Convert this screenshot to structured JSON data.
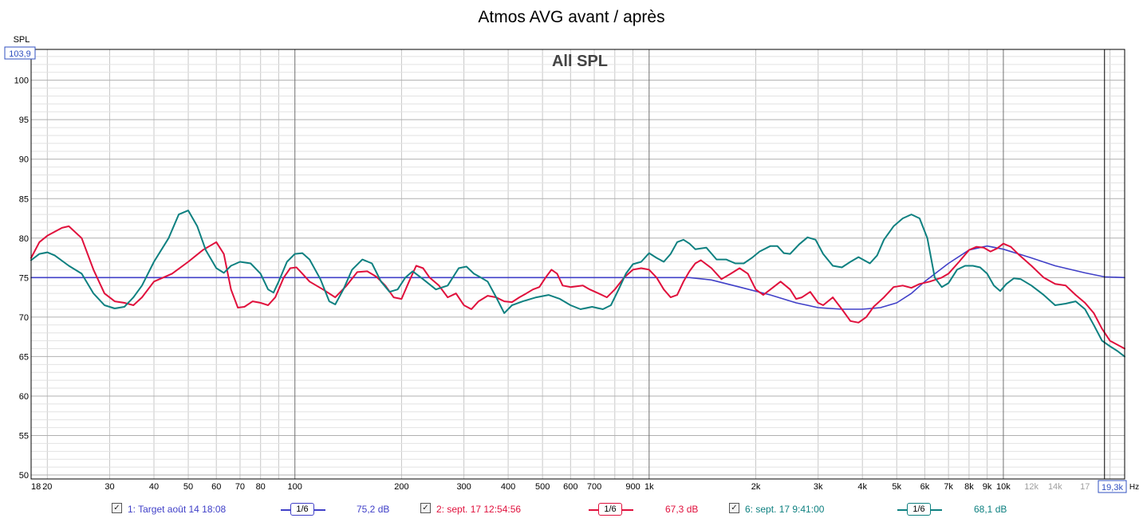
{
  "chart_data": {
    "type": "line",
    "title": "Atmos AVG avant / après",
    "plot_label": "All SPL",
    "ylabel": "SPL",
    "xlabel": "Hz",
    "x_scale": "log",
    "xlim": [
      18,
      22000
    ],
    "ylim": [
      49.5,
      103.9
    ],
    "y_top_readout": "103,9",
    "x_right_readout": "19,3k",
    "y_ticks": [
      50,
      55,
      60,
      65,
      70,
      75,
      80,
      85,
      90,
      95,
      100
    ],
    "x_tick_labels": [
      {
        "v": 18,
        "t": "18"
      },
      {
        "v": 20,
        "t": "20"
      },
      {
        "v": 30,
        "t": "30"
      },
      {
        "v": 40,
        "t": "40"
      },
      {
        "v": 50,
        "t": "50"
      },
      {
        "v": 60,
        "t": "60"
      },
      {
        "v": 70,
        "t": "70"
      },
      {
        "v": 80,
        "t": "80"
      },
      {
        "v": 100,
        "t": "100"
      },
      {
        "v": 200,
        "t": "200"
      },
      {
        "v": 300,
        "t": "300"
      },
      {
        "v": 400,
        "t": "400"
      },
      {
        "v": 500,
        "t": "500"
      },
      {
        "v": 600,
        "t": "600"
      },
      {
        "v": 700,
        "t": "700"
      },
      {
        "v": 900,
        "t": "900"
      },
      {
        "v": 1000,
        "t": "1k"
      },
      {
        "v": 2000,
        "t": "2k"
      },
      {
        "v": 3000,
        "t": "3k"
      },
      {
        "v": 4000,
        "t": "4k"
      },
      {
        "v": 5000,
        "t": "5k"
      },
      {
        "v": 6000,
        "t": "6k"
      },
      {
        "v": 7000,
        "t": "7k"
      },
      {
        "v": 8000,
        "t": "8k"
      },
      {
        "v": 9000,
        "t": "9k"
      },
      {
        "v": 10000,
        "t": "10k"
      }
    ],
    "x_tick_labels_faded": [
      {
        "v": 12000,
        "t": "12k"
      },
      {
        "v": 14000,
        "t": "14k"
      },
      {
        "v": 17000,
        "t": "17"
      }
    ],
    "cursor_x": 19300,
    "series": [
      {
        "name": "1: Target août 14 18:08",
        "color": "#4040c8",
        "smoothing": "1/6",
        "value": "75,2 dB",
        "points": [
          [
            18,
            75
          ],
          [
            500,
            75
          ],
          [
            1300,
            75
          ],
          [
            1500,
            74.7
          ],
          [
            1800,
            73.8
          ],
          [
            2200,
            72.8
          ],
          [
            2600,
            71.8
          ],
          [
            3000,
            71.2
          ],
          [
            3500,
            71
          ],
          [
            4000,
            71
          ],
          [
            4500,
            71.2
          ],
          [
            5000,
            71.8
          ],
          [
            5500,
            73
          ],
          [
            6000,
            74.5
          ],
          [
            7000,
            76.8
          ],
          [
            8000,
            78.5
          ],
          [
            9000,
            79
          ],
          [
            10000,
            78.6
          ],
          [
            12000,
            77.5
          ],
          [
            14000,
            76.5
          ],
          [
            17000,
            75.6
          ],
          [
            19300,
            75.1
          ],
          [
            22000,
            75
          ]
        ]
      },
      {
        "name": "2: sept. 17 12:54:56",
        "color": "#e0103c",
        "smoothing": "1/6",
        "value": "67,3 dB",
        "points": [
          [
            18,
            77.5
          ],
          [
            19,
            79.5
          ],
          [
            20,
            80.3
          ],
          [
            22,
            81.3
          ],
          [
            23,
            81.5
          ],
          [
            25,
            80
          ],
          [
            27,
            76
          ],
          [
            29,
            73
          ],
          [
            31,
            72
          ],
          [
            33,
            71.8
          ],
          [
            35,
            71.5
          ],
          [
            37,
            72.5
          ],
          [
            40,
            74.5
          ],
          [
            45,
            75.5
          ],
          [
            50,
            77
          ],
          [
            55,
            78.5
          ],
          [
            60,
            79.5
          ],
          [
            63,
            78
          ],
          [
            66,
            73.5
          ],
          [
            69,
            71.2
          ],
          [
            72,
            71.3
          ],
          [
            76,
            72
          ],
          [
            80,
            71.8
          ],
          [
            84,
            71.5
          ],
          [
            88,
            72.5
          ],
          [
            93,
            75
          ],
          [
            97,
            76.2
          ],
          [
            101,
            76.3
          ],
          [
            105,
            75.5
          ],
          [
            110,
            74.5
          ],
          [
            120,
            73.5
          ],
          [
            130,
            72.5
          ],
          [
            140,
            74
          ],
          [
            150,
            75.7
          ],
          [
            160,
            75.8
          ],
          [
            170,
            75.1
          ],
          [
            180,
            74
          ],
          [
            190,
            72.5
          ],
          [
            200,
            72.3
          ],
          [
            210,
            74.5
          ],
          [
            220,
            76.5
          ],
          [
            230,
            76.2
          ],
          [
            240,
            75
          ],
          [
            255,
            74
          ],
          [
            270,
            72.5
          ],
          [
            285,
            73
          ],
          [
            300,
            71.5
          ],
          [
            315,
            71
          ],
          [
            330,
            72
          ],
          [
            350,
            72.7
          ],
          [
            370,
            72.5
          ],
          [
            390,
            72
          ],
          [
            410,
            71.9
          ],
          [
            430,
            72.5
          ],
          [
            450,
            73
          ],
          [
            470,
            73.5
          ],
          [
            490,
            73.8
          ],
          [
            510,
            75
          ],
          [
            530,
            76
          ],
          [
            550,
            75.5
          ],
          [
            570,
            74
          ],
          [
            600,
            73.8
          ],
          [
            650,
            74
          ],
          [
            680,
            73.5
          ],
          [
            720,
            73
          ],
          [
            760,
            72.5
          ],
          [
            800,
            73.5
          ],
          [
            850,
            75
          ],
          [
            900,
            76
          ],
          [
            950,
            76.2
          ],
          [
            1000,
            76
          ],
          [
            1050,
            75
          ],
          [
            1100,
            73.5
          ],
          [
            1150,
            72.5
          ],
          [
            1200,
            72.8
          ],
          [
            1250,
            74.5
          ],
          [
            1300,
            75.8
          ],
          [
            1350,
            76.8
          ],
          [
            1400,
            77.2
          ],
          [
            1500,
            76.2
          ],
          [
            1600,
            74.8
          ],
          [
            1700,
            75.5
          ],
          [
            1800,
            76.2
          ],
          [
            1900,
            75.5
          ],
          [
            2000,
            73.5
          ],
          [
            2100,
            72.8
          ],
          [
            2200,
            73.5
          ],
          [
            2350,
            74.5
          ],
          [
            2500,
            73.5
          ],
          [
            2600,
            72.3
          ],
          [
            2700,
            72.5
          ],
          [
            2850,
            73.2
          ],
          [
            3000,
            71.8
          ],
          [
            3100,
            71.5
          ],
          [
            3300,
            72.5
          ],
          [
            3500,
            71
          ],
          [
            3700,
            69.5
          ],
          [
            3900,
            69.3
          ],
          [
            4100,
            70
          ],
          [
            4300,
            71.3
          ],
          [
            4600,
            72.5
          ],
          [
            4900,
            73.8
          ],
          [
            5200,
            74
          ],
          [
            5500,
            73.7
          ],
          [
            5800,
            74.2
          ],
          [
            6200,
            74.5
          ],
          [
            6700,
            75
          ],
          [
            7000,
            75.5
          ],
          [
            7500,
            77
          ],
          [
            8000,
            78.5
          ],
          [
            8400,
            78.9
          ],
          [
            8800,
            78.8
          ],
          [
            9200,
            78.3
          ],
          [
            9600,
            78.7
          ],
          [
            10000,
            79.3
          ],
          [
            10500,
            78.9
          ],
          [
            11000,
            78
          ],
          [
            12000,
            76.5
          ],
          [
            13000,
            75
          ],
          [
            14000,
            74.2
          ],
          [
            15000,
            74
          ],
          [
            16000,
            72.8
          ],
          [
            17000,
            71.8
          ],
          [
            18000,
            70.5
          ],
          [
            19000,
            68.5
          ],
          [
            20000,
            67
          ],
          [
            21000,
            66.5
          ],
          [
            22000,
            66
          ]
        ]
      },
      {
        "name": "6: sept. 17 9:41:00",
        "color": "#0e8080",
        "smoothing": "1/6",
        "value": "68,1 dB",
        "points": [
          [
            18,
            77.2
          ],
          [
            19,
            78
          ],
          [
            20,
            78.2
          ],
          [
            21,
            77.8
          ],
          [
            23,
            76.5
          ],
          [
            25,
            75.5
          ],
          [
            27,
            73
          ],
          [
            29,
            71.5
          ],
          [
            31,
            71.1
          ],
          [
            33,
            71.3
          ],
          [
            35,
            72.5
          ],
          [
            37,
            74
          ],
          [
            40,
            77
          ],
          [
            44,
            80
          ],
          [
            47,
            83
          ],
          [
            50,
            83.5
          ],
          [
            53,
            81.5
          ],
          [
            56,
            78.5
          ],
          [
            60,
            76.2
          ],
          [
            63,
            75.6
          ],
          [
            66,
            76.5
          ],
          [
            70,
            77
          ],
          [
            75,
            76.8
          ],
          [
            80,
            75.5
          ],
          [
            84,
            73.5
          ],
          [
            87,
            73.1
          ],
          [
            90,
            74.5
          ],
          [
            95,
            77
          ],
          [
            100,
            78
          ],
          [
            105,
            78.1
          ],
          [
            110,
            77.3
          ],
          [
            118,
            74.8
          ],
          [
            125,
            72
          ],
          [
            130,
            71.6
          ],
          [
            137,
            73.5
          ],
          [
            145,
            76
          ],
          [
            155,
            77.3
          ],
          [
            165,
            76.8
          ],
          [
            175,
            74.5
          ],
          [
            185,
            73.2
          ],
          [
            195,
            73.5
          ],
          [
            205,
            75
          ],
          [
            215,
            75.8
          ],
          [
            230,
            74.8
          ],
          [
            250,
            73.5
          ],
          [
            270,
            74
          ],
          [
            290,
            76.2
          ],
          [
            305,
            76.4
          ],
          [
            320,
            75.5
          ],
          [
            335,
            75
          ],
          [
            350,
            74.5
          ],
          [
            370,
            72.5
          ],
          [
            390,
            70.5
          ],
          [
            410,
            71.5
          ],
          [
            440,
            72
          ],
          [
            480,
            72.5
          ],
          [
            520,
            72.8
          ],
          [
            560,
            72.3
          ],
          [
            600,
            71.5
          ],
          [
            640,
            71
          ],
          [
            690,
            71.3
          ],
          [
            740,
            71
          ],
          [
            780,
            71.5
          ],
          [
            820,
            73.5
          ],
          [
            860,
            75.5
          ],
          [
            900,
            76.7
          ],
          [
            950,
            77
          ],
          [
            1000,
            78.1
          ],
          [
            1050,
            77.5
          ],
          [
            1100,
            77
          ],
          [
            1150,
            78
          ],
          [
            1200,
            79.5
          ],
          [
            1250,
            79.8
          ],
          [
            1300,
            79.3
          ],
          [
            1350,
            78.6
          ],
          [
            1450,
            78.8
          ],
          [
            1550,
            77.3
          ],
          [
            1650,
            77.3
          ],
          [
            1750,
            76.8
          ],
          [
            1850,
            76.8
          ],
          [
            1950,
            77.5
          ],
          [
            2050,
            78.3
          ],
          [
            2200,
            79
          ],
          [
            2300,
            79
          ],
          [
            2400,
            78.1
          ],
          [
            2500,
            78
          ],
          [
            2650,
            79.2
          ],
          [
            2800,
            80.1
          ],
          [
            2950,
            79.8
          ],
          [
            3100,
            78
          ],
          [
            3300,
            76.5
          ],
          [
            3500,
            76.3
          ],
          [
            3700,
            77
          ],
          [
            3900,
            77.6
          ],
          [
            4200,
            76.8
          ],
          [
            4400,
            77.8
          ],
          [
            4600,
            79.8
          ],
          [
            4900,
            81.5
          ],
          [
            5200,
            82.5
          ],
          [
            5500,
            83
          ],
          [
            5800,
            82.5
          ],
          [
            6100,
            80
          ],
          [
            6400,
            75
          ],
          [
            6700,
            73.8
          ],
          [
            7000,
            74.3
          ],
          [
            7400,
            76
          ],
          [
            7800,
            76.5
          ],
          [
            8200,
            76.5
          ],
          [
            8600,
            76.3
          ],
          [
            9000,
            75.5
          ],
          [
            9400,
            74
          ],
          [
            9800,
            73.3
          ],
          [
            10200,
            74.2
          ],
          [
            10700,
            74.9
          ],
          [
            11200,
            74.8
          ],
          [
            12000,
            74
          ],
          [
            13000,
            72.8
          ],
          [
            14000,
            71.5
          ],
          [
            15000,
            71.7
          ],
          [
            16000,
            72
          ],
          [
            17000,
            71
          ],
          [
            18000,
            69
          ],
          [
            19000,
            67
          ],
          [
            20000,
            66.3
          ],
          [
            21000,
            65.7
          ],
          [
            22000,
            65
          ]
        ]
      }
    ]
  },
  "legend": [
    {
      "label": "1: Target août 14 18:08",
      "smoothing": "1/6",
      "value": "75,2 dB",
      "color": "#4040c8",
      "checked": true
    },
    {
      "label": "2: sept. 17 12:54:56",
      "smoothing": "1/6",
      "value": "67,3 dB",
      "color": "#e0103c",
      "checked": true
    },
    {
      "label": "6: sept. 17 9:41:00",
      "smoothing": "1/6",
      "value": "68,1 dB",
      "color": "#0e8080",
      "checked": true
    }
  ]
}
